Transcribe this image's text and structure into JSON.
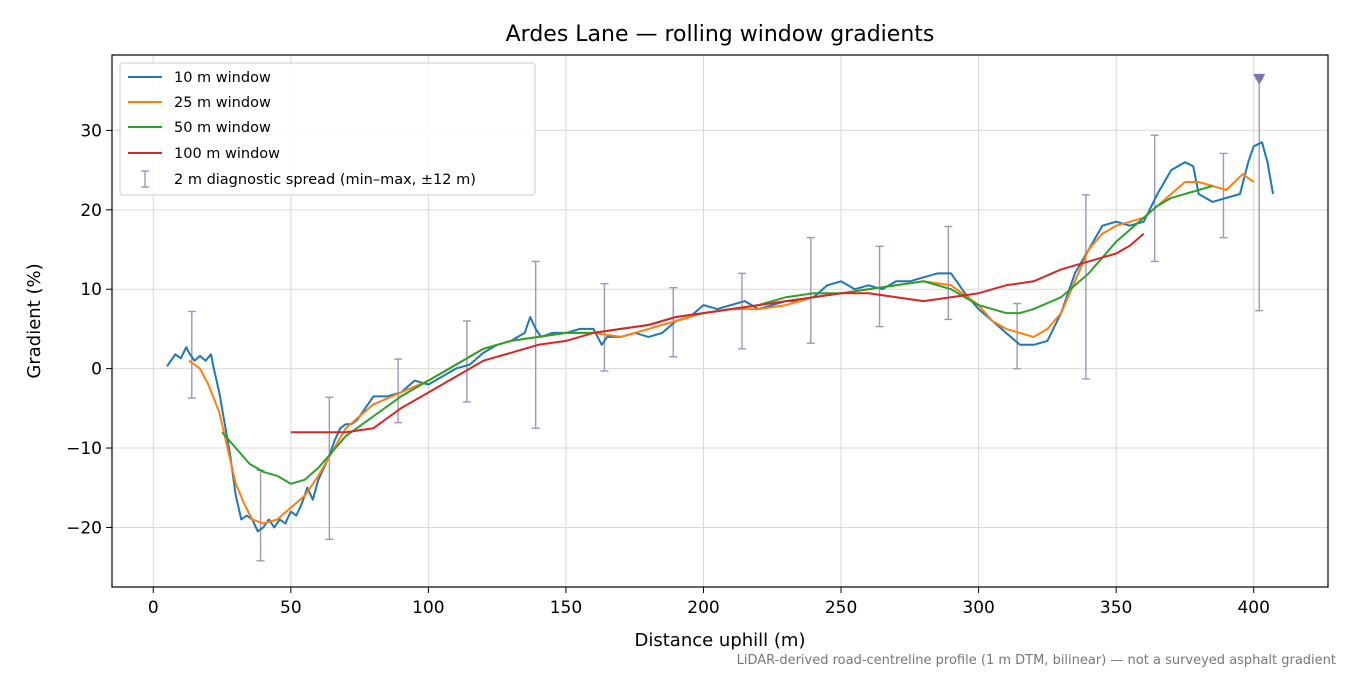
{
  "chart_data": {
    "type": "line",
    "title": "Ardes Lane — rolling window gradients",
    "xlabel": "Distance uphill (m)",
    "ylabel": "Gradient (%)",
    "xlim": [
      -15,
      427
    ],
    "ylim": [
      -27.5,
      39.5
    ],
    "xticks": [
      0,
      50,
      100,
      150,
      200,
      250,
      300,
      350,
      400
    ],
    "yticks": [
      -20,
      -10,
      0,
      10,
      20,
      30
    ],
    "grid": true,
    "legend_position": "top-left",
    "footnote": "LiDAR-derived road-centreline profile (1 m DTM, bilinear) — not a surveyed asphalt gradient",
    "series": [
      {
        "name": "10 m window",
        "color": "#1f77b4",
        "x": [
          5,
          8,
          10,
          12,
          13,
          15,
          17,
          19,
          21,
          22,
          24,
          26,
          28,
          30,
          32,
          34,
          36,
          38,
          40,
          42,
          44,
          46,
          48,
          50,
          52,
          54,
          56,
          58,
          60,
          62,
          64,
          66,
          68,
          70,
          72,
          74,
          76,
          78,
          80,
          85,
          90,
          95,
          100,
          105,
          110,
          115,
          120,
          125,
          130,
          135,
          137,
          139,
          141,
          145,
          150,
          155,
          160,
          163,
          165,
          170,
          175,
          180,
          185,
          190,
          195,
          200,
          205,
          210,
          215,
          220,
          225,
          230,
          235,
          240,
          245,
          250,
          255,
          260,
          265,
          270,
          275,
          280,
          285,
          290,
          295,
          300,
          305,
          310,
          315,
          320,
          325,
          330,
          335,
          340,
          345,
          350,
          355,
          360,
          365,
          370,
          375,
          378,
          380,
          385,
          390,
          395,
          398,
          400,
          403,
          405,
          407
        ],
        "y": [
          0.3,
          1.8,
          1.3,
          2.7,
          2.0,
          1.0,
          1.6,
          1.0,
          1.8,
          0.0,
          -3.0,
          -7.0,
          -11.0,
          -16.0,
          -19.0,
          -18.5,
          -19.0,
          -20.5,
          -20.0,
          -19.0,
          -20.0,
          -19.0,
          -19.5,
          -18.0,
          -18.5,
          -17.0,
          -15.0,
          -16.5,
          -14.0,
          -12.5,
          -11.0,
          -9.0,
          -7.5,
          -7.0,
          -7.0,
          -6.5,
          -5.5,
          -4.5,
          -3.5,
          -3.5,
          -3.0,
          -1.5,
          -2.0,
          -1.0,
          0.0,
          0.5,
          2.0,
          3.0,
          3.5,
          4.5,
          6.5,
          5.0,
          4.0,
          4.5,
          4.5,
          5.0,
          5.0,
          3.0,
          4.0,
          4.0,
          4.5,
          4.0,
          4.5,
          6.0,
          6.5,
          8.0,
          7.5,
          8.0,
          8.5,
          7.5,
          8.0,
          8.5,
          8.5,
          9.0,
          10.5,
          11.0,
          10.0,
          10.5,
          10.0,
          11.0,
          11.0,
          11.5,
          12.0,
          12.0,
          9.5,
          7.5,
          6.0,
          4.5,
          3.0,
          3.0,
          3.5,
          7.0,
          12.0,
          15.0,
          18.0,
          18.5,
          18.0,
          18.5,
          22.0,
          25.0,
          26.0,
          25.5,
          22.0,
          21.0,
          21.5,
          22.0,
          26.0,
          28.0,
          28.5,
          26.0,
          22.0
        ]
      },
      {
        "name": "25 m window",
        "color": "#ff7f0e",
        "x": [
          13,
          17,
          20,
          24,
          27,
          30,
          33,
          36,
          40,
          45,
          50,
          55,
          60,
          65,
          70,
          75,
          80,
          90,
          100,
          110,
          120,
          130,
          140,
          150,
          160,
          170,
          180,
          190,
          200,
          210,
          220,
          230,
          240,
          250,
          260,
          270,
          280,
          290,
          300,
          305,
          310,
          315,
          320,
          325,
          330,
          335,
          340,
          345,
          350,
          360,
          365,
          370,
          375,
          380,
          385,
          390,
          393,
          396,
          398,
          400
        ],
        "y": [
          1.0,
          0.0,
          -2.0,
          -5.5,
          -10.0,
          -14.5,
          -17.0,
          -19.0,
          -19.5,
          -19.0,
          -17.5,
          -16.0,
          -13.5,
          -10.5,
          -7.5,
          -6.0,
          -4.5,
          -3.0,
          -1.5,
          0.5,
          2.5,
          3.5,
          4.0,
          4.5,
          4.5,
          4.0,
          5.0,
          6.0,
          7.0,
          7.5,
          7.5,
          8.0,
          9.0,
          9.5,
          10.0,
          10.5,
          11.0,
          10.5,
          8.0,
          6.0,
          5.0,
          4.5,
          4.0,
          5.0,
          7.0,
          11.0,
          15.0,
          17.0,
          18.0,
          19.0,
          20.5,
          22.0,
          23.5,
          23.5,
          23.0,
          22.5,
          23.5,
          24.5,
          24.0,
          23.5
        ]
      },
      {
        "name": "50 m window",
        "color": "#2ca02c",
        "x": [
          25,
          30,
          35,
          40,
          45,
          50,
          55,
          60,
          65,
          70,
          80,
          90,
          100,
          110,
          120,
          130,
          140,
          150,
          160,
          170,
          180,
          190,
          200,
          210,
          220,
          230,
          240,
          250,
          260,
          270,
          280,
          290,
          300,
          305,
          310,
          315,
          320,
          330,
          340,
          350,
          360,
          365,
          370,
          380,
          385
        ],
        "y": [
          -8.0,
          -10.0,
          -12.0,
          -13.0,
          -13.5,
          -14.5,
          -14.0,
          -12.5,
          -10.5,
          -8.5,
          -6.0,
          -3.5,
          -1.5,
          0.5,
          2.5,
          3.5,
          4.0,
          4.5,
          4.5,
          5.0,
          5.5,
          6.5,
          7.0,
          7.5,
          8.0,
          9.0,
          9.5,
          9.5,
          10.0,
          10.5,
          11.0,
          10.0,
          8.0,
          7.5,
          7.0,
          7.0,
          7.5,
          9.0,
          12.0,
          16.0,
          19.0,
          20.5,
          21.5,
          22.5,
          23.0
        ]
      },
      {
        "name": "100 m window",
        "color": "#d62728",
        "x": [
          50,
          60,
          70,
          80,
          90,
          100,
          110,
          120,
          130,
          140,
          150,
          160,
          170,
          180,
          190,
          200,
          210,
          220,
          230,
          240,
          250,
          260,
          270,
          280,
          290,
          300,
          310,
          320,
          330,
          340,
          350,
          355,
          360
        ],
        "y": [
          -8.0,
          -8.0,
          -8.0,
          -7.5,
          -5.0,
          -3.0,
          -1.0,
          1.0,
          2.0,
          3.0,
          3.5,
          4.5,
          5.0,
          5.5,
          6.5,
          7.0,
          7.5,
          8.0,
          8.5,
          9.0,
          9.5,
          9.5,
          9.0,
          8.5,
          9.0,
          9.5,
          10.5,
          11.0,
          12.5,
          13.5,
          14.5,
          15.5,
          17.0
        ]
      }
    ],
    "errorbars": {
      "name": "2 m diagnostic spread (min–max, ±12 m)",
      "color": "#9b97bb",
      "points": [
        {
          "x": 14,
          "low": -3.7,
          "high": 7.2
        },
        {
          "x": 39,
          "low": -24.2,
          "high": -12.8
        },
        {
          "x": 64,
          "low": -21.5,
          "high": -3.6
        },
        {
          "x": 89,
          "low": -6.8,
          "high": 1.2
        },
        {
          "x": 114,
          "low": -4.2,
          "high": 6.0
        },
        {
          "x": 139,
          "low": -7.5,
          "high": 13.5
        },
        {
          "x": 164,
          "low": -0.3,
          "high": 10.7
        },
        {
          "x": 189,
          "low": 1.5,
          "high": 10.2
        },
        {
          "x": 214,
          "low": 2.5,
          "high": 12.0
        },
        {
          "x": 239,
          "low": 3.2,
          "high": 16.5
        },
        {
          "x": 264,
          "low": 5.3,
          "high": 15.4
        },
        {
          "x": 289,
          "low": 6.2,
          "high": 17.9
        },
        {
          "x": 314,
          "low": 0.0,
          "high": 8.2
        },
        {
          "x": 339,
          "low": -1.3,
          "high": 21.9
        },
        {
          "x": 364,
          "low": 13.5,
          "high": 29.4
        },
        {
          "x": 389,
          "low": 16.5,
          "high": 27.1
        },
        {
          "x": 402,
          "low": 7.3,
          "high": 36.5
        }
      ]
    },
    "marker": {
      "x": 402,
      "y": 36.5,
      "shape": "triangle-down",
      "color": "#8172b3"
    }
  }
}
